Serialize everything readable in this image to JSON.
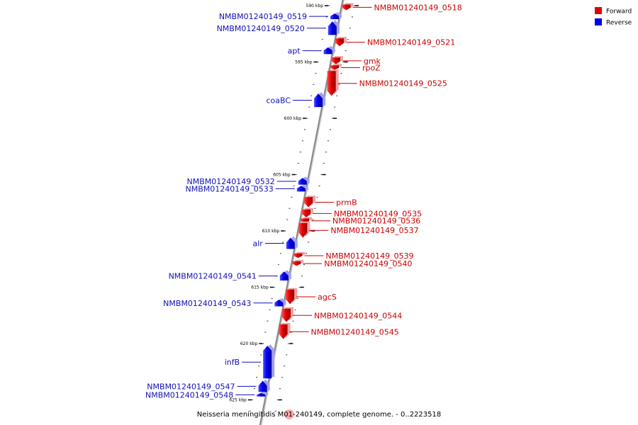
{
  "colors": {
    "forward": "#e00000",
    "forward_label": "#cc0000",
    "reverse": "#0000ee",
    "reverse_label": "#1010bb",
    "backbone": "#8a8a8a"
  },
  "legend": [
    {
      "label": "Forward",
      "strand": "forward"
    },
    {
      "label": "Reverse",
      "strand": "reverse"
    }
  ],
  "caption": "Neisseria meningitidis M01-240149, complete genome. - 0..2223518",
  "ticks": [
    {
      "label": "590 kbp",
      "kbp": 590
    },
    {
      "label": "595 kbp",
      "kbp": 595
    },
    {
      "label": "600 kbp",
      "kbp": 600
    },
    {
      "label": "605 kbp",
      "kbp": 605
    },
    {
      "label": "610 kbp",
      "kbp": 610
    },
    {
      "label": "615 kbp",
      "kbp": 615
    },
    {
      "label": "620 kbp",
      "kbp": 620
    },
    {
      "label": "625 kbp",
      "kbp": 625
    }
  ],
  "genes": [
    {
      "name": "NMBM01240149_0518",
      "strand": "forward",
      "start_kbp": 589.9,
      "end_kbp": 590.4
    },
    {
      "name": "NMBM01240149_0519",
      "strand": "reverse",
      "start_kbp": 590.7,
      "end_kbp": 591.2
    },
    {
      "name": "NMBM01240149_0520",
      "strand": "reverse",
      "start_kbp": 591.4,
      "end_kbp": 592.6
    },
    {
      "name": "NMBM01240149_0521",
      "strand": "forward",
      "start_kbp": 592.9,
      "end_kbp": 593.6
    },
    {
      "name": "apt",
      "strand": "reverse",
      "start_kbp": 593.7,
      "end_kbp": 594.3
    },
    {
      "name": "gmk",
      "strand": "forward",
      "start_kbp": 594.6,
      "end_kbp": 595.2
    },
    {
      "name": "rpoZ",
      "strand": "forward",
      "start_kbp": 595.3,
      "end_kbp": 595.7
    },
    {
      "name": "NMBM01240149_0525",
      "strand": "forward",
      "start_kbp": 595.8,
      "end_kbp": 598.0
    },
    {
      "name": "coaBC",
      "strand": "reverse",
      "start_kbp": 597.8,
      "end_kbp": 599.0
    },
    {
      "name": "NMBM01240149_0532",
      "strand": "reverse",
      "start_kbp": 605.3,
      "end_kbp": 605.9
    },
    {
      "name": "NMBM01240149_0533",
      "strand": "reverse",
      "start_kbp": 606.0,
      "end_kbp": 606.5
    },
    {
      "name": "prmB",
      "strand": "forward",
      "start_kbp": 607.0,
      "end_kbp": 607.9
    },
    {
      "name": "NMBM01240149_0535",
      "strand": "forward",
      "start_kbp": 608.1,
      "end_kbp": 608.8
    },
    {
      "name": "NMBM01240149_0536",
      "strand": "forward",
      "start_kbp": 608.9,
      "end_kbp": 609.3
    },
    {
      "name": "NMBM01240149_0537",
      "strand": "forward",
      "start_kbp": 609.3,
      "end_kbp": 610.6
    },
    {
      "name": "alr",
      "strand": "reverse",
      "start_kbp": 610.6,
      "end_kbp": 611.6
    },
    {
      "name": "NMBM01240149_0539",
      "strand": "forward",
      "start_kbp": 612.0,
      "end_kbp": 612.4
    },
    {
      "name": "NMBM01240149_0540",
      "strand": "forward",
      "start_kbp": 612.7,
      "end_kbp": 613.1
    },
    {
      "name": "NMBM01240149_0541",
      "strand": "reverse",
      "start_kbp": 613.6,
      "end_kbp": 614.4
    },
    {
      "name": "agcS",
      "strand": "forward",
      "start_kbp": 615.2,
      "end_kbp": 616.5
    },
    {
      "name": "NMBM01240149_0543",
      "strand": "reverse",
      "start_kbp": 616.1,
      "end_kbp": 616.7
    },
    {
      "name": "NMBM01240149_0544",
      "strand": "forward",
      "start_kbp": 616.9,
      "end_kbp": 618.1
    },
    {
      "name": "NMBM01240149_0545",
      "strand": "forward",
      "start_kbp": 618.3,
      "end_kbp": 619.6
    },
    {
      "name": "infB",
      "strand": "reverse",
      "start_kbp": 620.2,
      "end_kbp": 623.1
    },
    {
      "name": "NMBM01240149_0547",
      "strand": "reverse",
      "start_kbp": 623.3,
      "end_kbp": 624.3
    },
    {
      "name": "NMBM01240149_0548",
      "strand": "reverse",
      "start_kbp": 624.4,
      "end_kbp": 624.7
    }
  ]
}
